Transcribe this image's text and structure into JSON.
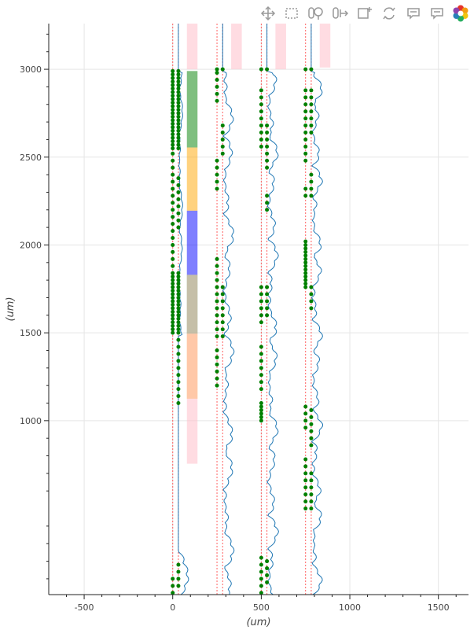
{
  "toolbar": {
    "tools": [
      {
        "name": "pan-tool-icon",
        "active": false
      },
      {
        "name": "box-select-tool-icon",
        "active": true
      },
      {
        "name": "wheel-zoom-tool-icon",
        "active": false
      },
      {
        "name": "xwheel-pan-tool-icon",
        "active": true
      },
      {
        "name": "box-zoom-tool-icon",
        "active": false
      },
      {
        "name": "reset-tool-icon",
        "active": false
      },
      {
        "name": "hover-tool-icon",
        "active": true
      },
      {
        "name": "hover-tool-2-icon",
        "active": true
      },
      {
        "name": "bokeh-logo-icon",
        "active": false
      }
    ]
  },
  "chart_data": {
    "type": "line",
    "xlabel": "(um)",
    "ylabel": "(um)",
    "xlim": [
      -700,
      1670
    ],
    "ylim": [
      10,
      3260
    ],
    "xticks": [
      "-500",
      "0",
      "500",
      "1000",
      "1500"
    ],
    "xtick_values": [
      -500,
      0,
      500,
      1000,
      1500
    ],
    "yticks": [
      "1000",
      "1500",
      "2000",
      "2500",
      "3000"
    ],
    "ytick_values": [
      1000,
      1500,
      2000,
      2500,
      3000
    ],
    "grid": true,
    "colors": {
      "trace": "#1f77b4",
      "channel_dot": "#008000",
      "probe_line": "#ff6060",
      "region_pink": "#ffc0cb",
      "region_green": "#008000",
      "region_orange": "#ffa500",
      "region_blue": "#0000ff"
    },
    "shanks": [
      {
        "x_left": 0,
        "x_right": 32
      },
      {
        "x_left": 250,
        "x_right": 282
      },
      {
        "x_left": 500,
        "x_right": 532
      },
      {
        "x_left": 750,
        "x_right": 782
      }
    ],
    "regions": [
      {
        "x": 110,
        "y0": 3000,
        "y1": 3260,
        "color": "pink"
      },
      {
        "x": 110,
        "y0": 2555,
        "y1": 2990,
        "color": "green"
      },
      {
        "x": 110,
        "y0": 2195,
        "y1": 2555,
        "color": "orange"
      },
      {
        "x": 110,
        "y0": 1830,
        "y1": 2195,
        "color": "blue"
      },
      {
        "x": 110,
        "y0": 1495,
        "y1": 1830,
        "color": "green"
      },
      {
        "x": 110,
        "y0": 1125,
        "y1": 1495,
        "color": "orange"
      },
      {
        "x": 110,
        "y0": 755,
        "y1": 1830,
        "color": "pink"
      },
      {
        "x": 360,
        "y0": 3000,
        "y1": 3260,
        "color": "pink"
      },
      {
        "x": 610,
        "y0": 3000,
        "y1": 3260,
        "color": "pink"
      },
      {
        "x": 860,
        "y0": 3010,
        "y1": 3260,
        "color": "pink"
      }
    ],
    "channel_groups": [
      {
        "x": 0,
        "y0": 1500,
        "y1": 1850,
        "step": 20
      },
      {
        "x": 32,
        "y0": 1500,
        "y1": 1850,
        "step": 20
      },
      {
        "x": 0,
        "y0": 2550,
        "y1": 2990,
        "step": 20
      },
      {
        "x": 32,
        "y0": 2550,
        "y1": 2990,
        "step": 20
      },
      {
        "x": 0,
        "y0": 1880,
        "y1": 2520,
        "step": 40
      },
      {
        "x": 32,
        "y0": 2100,
        "y1": 2400,
        "step": 40
      },
      {
        "x": 32,
        "y0": 1100,
        "y1": 1460,
        "step": 40
      },
      {
        "x": 0,
        "y0": 20,
        "y1": 120,
        "step": 40
      },
      {
        "x": 32,
        "y0": 60,
        "y1": 200,
        "step": 40
      },
      {
        "x": 250,
        "y0": 1480,
        "y1": 1920,
        "step": 40
      },
      {
        "x": 282,
        "y0": 1480,
        "y1": 1760,
        "step": 40
      },
      {
        "x": 250,
        "y0": 1200,
        "y1": 1400,
        "step": 40
      },
      {
        "x": 250,
        "y0": 2320,
        "y1": 2480,
        "step": 40
      },
      {
        "x": 282,
        "y0": 2520,
        "y1": 2700,
        "step": 40
      },
      {
        "x": 250,
        "y0": 2820,
        "y1": 2980,
        "step": 40
      },
      {
        "x": 500,
        "y0": 1560,
        "y1": 1760,
        "step": 40
      },
      {
        "x": 532,
        "y0": 1600,
        "y1": 1760,
        "step": 40
      },
      {
        "x": 500,
        "y0": 1180,
        "y1": 1440,
        "step": 40
      },
      {
        "x": 500,
        "y0": 1000,
        "y1": 1100,
        "step": 20
      },
      {
        "x": 500,
        "y0": 20,
        "y1": 240,
        "step": 40
      },
      {
        "x": 532,
        "y0": 80,
        "y1": 200,
        "step": 40
      },
      {
        "x": 500,
        "y0": 2560,
        "y1": 2900,
        "step": 40
      },
      {
        "x": 532,
        "y0": 2440,
        "y1": 2700,
        "step": 40
      },
      {
        "x": 532,
        "y0": 2200,
        "y1": 2300,
        "step": 40
      },
      {
        "x": 750,
        "y0": 1760,
        "y1": 2020,
        "step": 20
      },
      {
        "x": 782,
        "y0": 1640,
        "y1": 1760,
        "step": 40
      },
      {
        "x": 750,
        "y0": 960,
        "y1": 1100,
        "step": 40
      },
      {
        "x": 782,
        "y0": 860,
        "y1": 1060,
        "step": 40
      },
      {
        "x": 750,
        "y0": 500,
        "y1": 780,
        "step": 40
      },
      {
        "x": 782,
        "y0": 500,
        "y1": 720,
        "step": 40
      },
      {
        "x": 750,
        "y0": 2480,
        "y1": 2900,
        "step": 40
      },
      {
        "x": 782,
        "y0": 2640,
        "y1": 2900,
        "step": 40
      },
      {
        "x": 782,
        "y0": 2280,
        "y1": 2400,
        "step": 40
      },
      {
        "x": 750,
        "y0": 2280,
        "y1": 2340,
        "step": 40
      },
      {
        "x": 750,
        "y0": 3000,
        "y1": 3010,
        "step": 20
      },
      {
        "x": 782,
        "y0": 3000,
        "y1": 3010,
        "step": 20
      },
      {
        "x": 500,
        "y0": 3000,
        "y1": 3010,
        "step": 20
      },
      {
        "x": 532,
        "y0": 3000,
        "y1": 3010,
        "step": 20
      },
      {
        "x": 250,
        "y0": 3000,
        "y1": 3010,
        "step": 20
      },
      {
        "x": 282,
        "y0": 3000,
        "y1": 3010,
        "step": 20
      }
    ]
  }
}
